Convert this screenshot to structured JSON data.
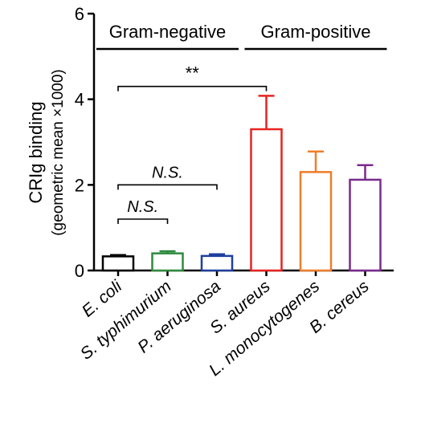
{
  "chart_data": {
    "type": "bar",
    "categories": [
      "E. coli",
      "S. typhimurium",
      "P. aeruginosa",
      "S. aureus",
      "L. monocytogenes",
      "B. cereus"
    ],
    "values": [
      0.33,
      0.4,
      0.34,
      3.3,
      2.3,
      2.12
    ],
    "errors": [
      0.03,
      0.05,
      0.04,
      0.78,
      0.48,
      0.34
    ],
    "bar_colors": [
      "#000000",
      "#2e8b3e",
      "#1f3f9f",
      "#e8231f",
      "#f07d2a",
      "#7a2a8e"
    ],
    "ylabel_line1": "CRIg binding",
    "ylabel_line2": "(geometric mean ×1000)",
    "ylim": [
      0,
      6
    ],
    "yticks": [
      0,
      2,
      4,
      6
    ],
    "groups": [
      {
        "label": "Gram-negative",
        "members": [
          0,
          2
        ]
      },
      {
        "label": "Gram-positive",
        "members": [
          3,
          5
        ]
      }
    ],
    "significance": [
      {
        "from": 0,
        "to": 3,
        "label": "**",
        "level": 4.3
      },
      {
        "from": 0,
        "to": 2,
        "label": "N.S.",
        "level": 2.0
      },
      {
        "from": 0,
        "to": 1,
        "label": "N.S.",
        "level": 1.2
      }
    ]
  }
}
